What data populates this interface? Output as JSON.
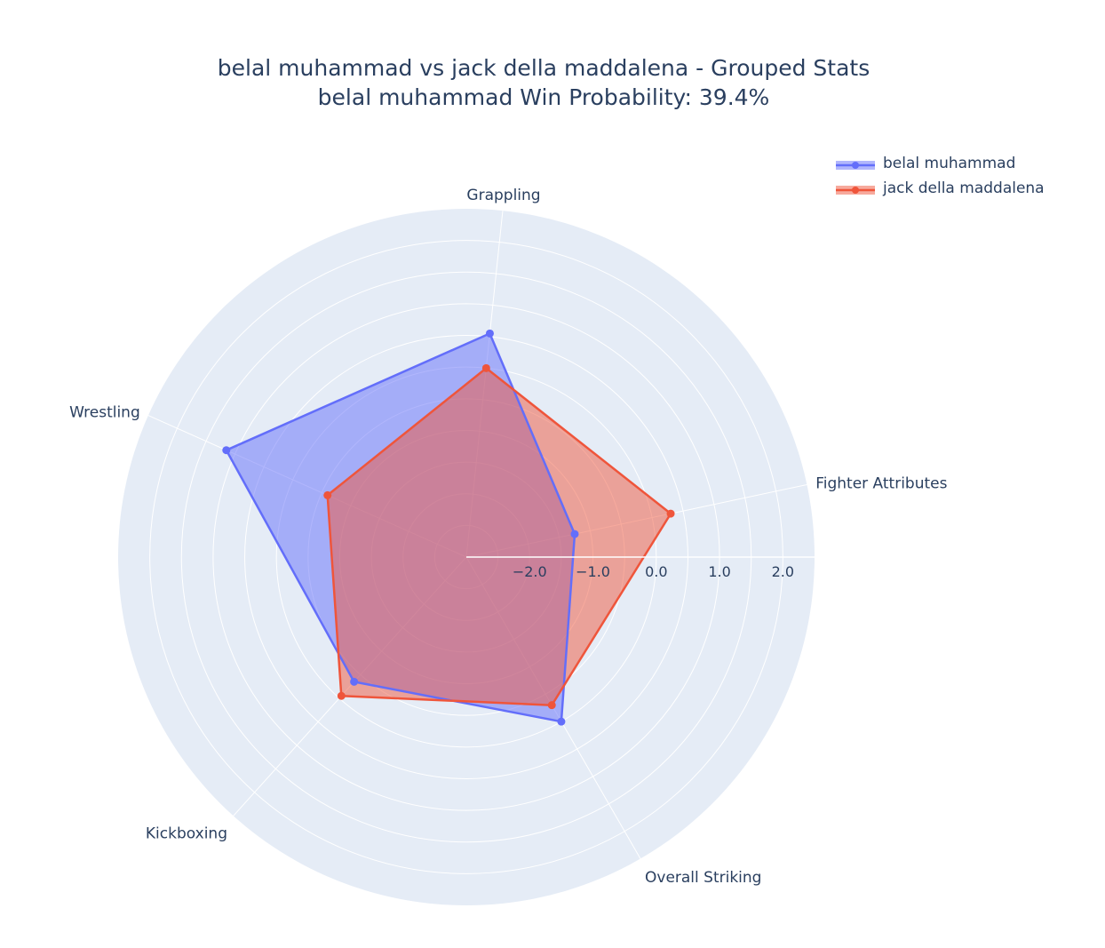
{
  "chart_data": {
    "type": "radar",
    "title": "belal muhammad vs jack della maddalena - Grouped Stats",
    "subtitle": "belal muhammad Win Probability: 39.4%",
    "categories": [
      "Fighter Attributes",
      "Overall Striking",
      "Kickboxing",
      "Wrestling",
      "Grappling"
    ],
    "radial_range": [
      -3.0,
      2.5
    ],
    "radial_ticks": [
      -2.0,
      -1.0,
      0.0,
      1.0,
      2.0
    ],
    "radial_tick_labels": [
      "−2.0",
      "−1.0",
      "0.0",
      "1.0",
      "2.0"
    ],
    "grid": true,
    "legend_position": "top-right",
    "series": [
      {
        "name": "belal muhammad",
        "color": "#636efa",
        "values": [
          -1.25,
          0.0,
          -0.35,
          1.15,
          0.55
        ]
      },
      {
        "name": "jack della maddalena",
        "color": "#ef553b",
        "values": [
          0.3,
          -0.3,
          -0.05,
          -0.6,
          0.0
        ]
      }
    ]
  }
}
